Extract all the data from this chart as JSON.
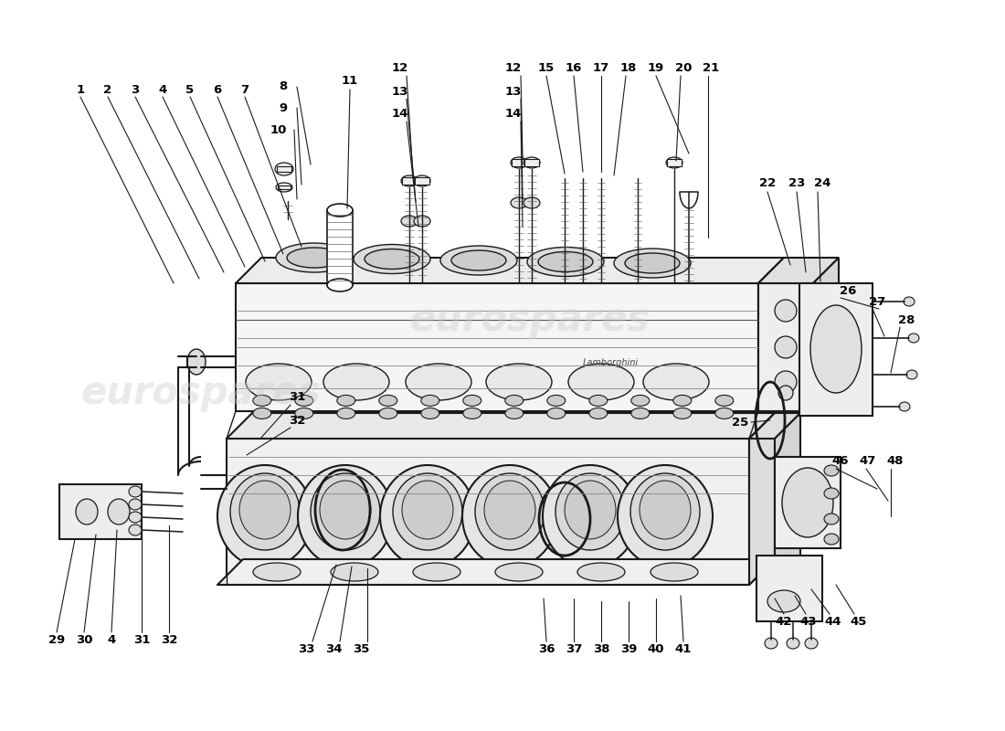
{
  "background_color": "#ffffff",
  "line_color": "#1a1a1a",
  "watermark_text": "eurospares",
  "watermark_color": "#cccccc",
  "fig_width": 11.0,
  "fig_height": 8.0,
  "dpi": 100
}
